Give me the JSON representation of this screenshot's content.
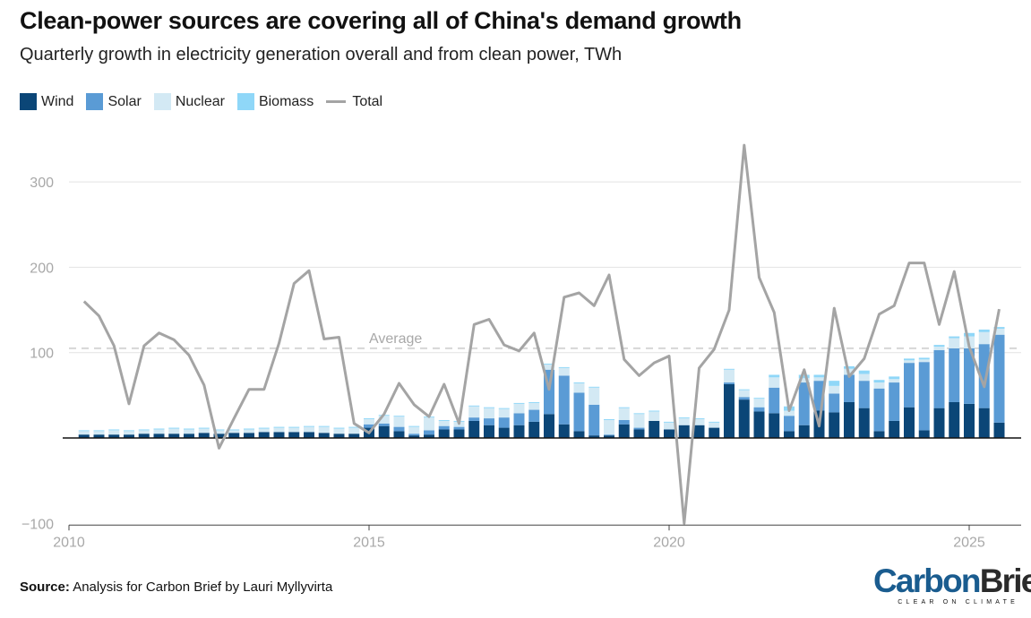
{
  "title": "Clean-power sources are covering all of China's demand growth",
  "subtitle": "Quarterly growth in electricity generation overall and from clean power, TWh",
  "legend": [
    {
      "label": "Wind",
      "color": "#0b4677",
      "kind": "box"
    },
    {
      "label": "Solar",
      "color": "#5a9bd5",
      "kind": "box"
    },
    {
      "label": "Nuclear",
      "color": "#d3e9f4",
      "kind": "box"
    },
    {
      "label": "Biomass",
      "color": "#8fd7f8",
      "kind": "box"
    },
    {
      "label": "Total",
      "color": "#a4a4a4",
      "kind": "line"
    }
  ],
  "source": {
    "label": "Source:",
    "text": "Analysis for Carbon Brief by Lauri Myllyvirta"
  },
  "logo": {
    "main": "CarbonBrief",
    "carbon": "Carbon",
    "brief": "Brief",
    "tagline": "CLEAR ON CLIMATE",
    "color_carbon": "#1a5c8f",
    "color_brief": "#2a2a2a"
  },
  "chart_data": {
    "type": "bar",
    "stacked": true,
    "x_start": 2010.25,
    "x_step": 0.25,
    "xlim": [
      2010,
      2025.95
    ],
    "ylim": [
      -100,
      350
    ],
    "yticks": [
      -100,
      100,
      200,
      300
    ],
    "xticks": [
      2010,
      2015,
      2020,
      2025
    ],
    "grid": true,
    "series": [
      {
        "name": "Wind",
        "color": "#0b4677",
        "values": [
          4,
          4,
          4,
          4,
          5,
          5,
          5,
          5,
          6,
          5,
          6,
          6,
          7,
          7,
          7,
          7,
          6,
          5,
          5,
          12,
          14,
          8,
          3,
          4,
          10,
          10,
          20,
          15,
          12,
          15,
          19,
          28,
          16,
          8,
          3,
          3,
          16,
          10,
          20,
          10,
          15,
          15,
          12,
          63,
          45,
          31,
          29,
          8,
          15,
          32,
          30,
          42,
          35,
          8,
          20,
          36,
          9,
          35,
          42,
          40,
          35,
          18
        ]
      },
      {
        "name": "Solar",
        "color": "#5a9bd5",
        "values": [
          0,
          0,
          0,
          0,
          0,
          0,
          0,
          0,
          0,
          0,
          0,
          0,
          0,
          0,
          0,
          0,
          0,
          0,
          0,
          4,
          3,
          5,
          2,
          5,
          4,
          3,
          4,
          8,
          12,
          14,
          14,
          52,
          57,
          45,
          36,
          1,
          5,
          2,
          0,
          0,
          0,
          0,
          0,
          2,
          3,
          5,
          30,
          18,
          50,
          35,
          22,
          32,
          32,
          50,
          45,
          52,
          80,
          68,
          63,
          65,
          75,
          103
        ]
      },
      {
        "name": "Nuclear",
        "color": "#d3e9f4",
        "values": [
          4,
          4,
          5,
          4,
          4,
          5,
          6,
          5,
          5,
          4,
          3,
          4,
          4,
          5,
          5,
          6,
          7,
          6,
          7,
          6,
          9,
          12,
          8,
          15,
          6,
          6,
          13,
          12,
          10,
          11,
          8,
          6,
          9,
          11,
          20,
          17,
          14,
          16,
          11,
          8,
          8,
          7,
          6,
          15,
          8,
          10,
          12,
          6,
          5,
          4,
          9,
          7,
          8,
          7,
          4,
          3,
          3,
          4,
          12,
          14,
          14,
          7
        ]
      },
      {
        "name": "Biomass",
        "color": "#8fd7f8",
        "values": [
          1,
          1,
          1,
          1,
          1,
          1,
          1,
          1,
          1,
          1,
          1,
          1,
          1,
          1,
          1,
          1,
          1,
          1,
          1,
          1,
          1,
          1,
          1,
          1,
          1,
          1,
          1,
          1,
          1,
          1,
          1,
          1,
          1,
          1,
          1,
          1,
          1,
          1,
          1,
          1,
          1,
          1,
          1,
          1,
          1,
          1,
          3,
          5,
          4,
          3,
          6,
          3,
          4,
          3,
          3,
          2,
          2,
          2,
          2,
          4,
          3,
          2
        ]
      }
    ],
    "total": {
      "name": "Total",
      "color": "#a4a4a4",
      "values": [
        160,
        143,
        108,
        40,
        108,
        123,
        115,
        97,
        62,
        -12,
        23,
        57,
        57,
        111,
        181,
        196,
        116,
        118,
        17,
        6,
        28,
        64,
        39,
        25,
        63,
        17,
        133,
        139,
        109,
        102,
        123,
        57,
        165,
        170,
        155,
        191,
        92,
        73,
        88,
        96,
        -100,
        82,
        104,
        150,
        343,
        188,
        147,
        32,
        80,
        14,
        152,
        72,
        93,
        145,
        155,
        205,
        205,
        133,
        195,
        107,
        60,
        151
      ]
    },
    "average": {
      "label": "Average",
      "value": 105
    }
  }
}
